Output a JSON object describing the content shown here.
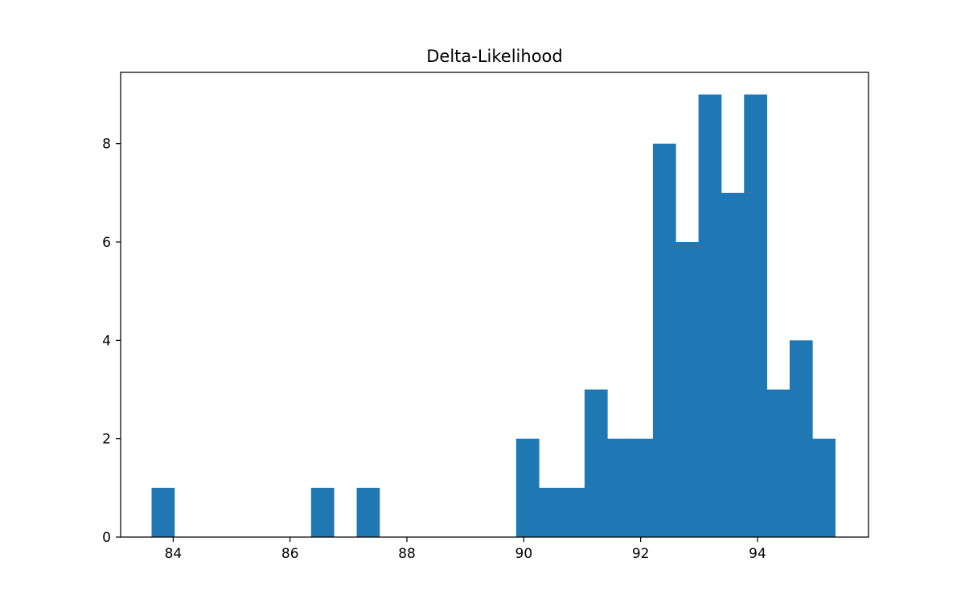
{
  "chart_data": {
    "type": "bar",
    "title": "Delta-Likelihood",
    "xlabel": "",
    "ylabel": "",
    "bar_color": "#1f77b4",
    "xlim": [
      83.1,
      95.9
    ],
    "ylim": [
      0,
      9.45
    ],
    "xticks": [
      84,
      86,
      88,
      90,
      92,
      94
    ],
    "yticks": [
      0,
      2,
      4,
      6,
      8
    ],
    "grid": false,
    "legend": "none",
    "bins": {
      "start": 83.63,
      "width": 0.39,
      "counts": [
        1,
        0,
        0,
        0,
        0,
        0,
        0,
        1,
        0,
        1,
        0,
        0,
        0,
        0,
        0,
        0,
        2,
        1,
        1,
        3,
        2,
        2,
        8,
        6,
        9,
        7,
        9,
        3,
        4,
        2
      ]
    }
  }
}
